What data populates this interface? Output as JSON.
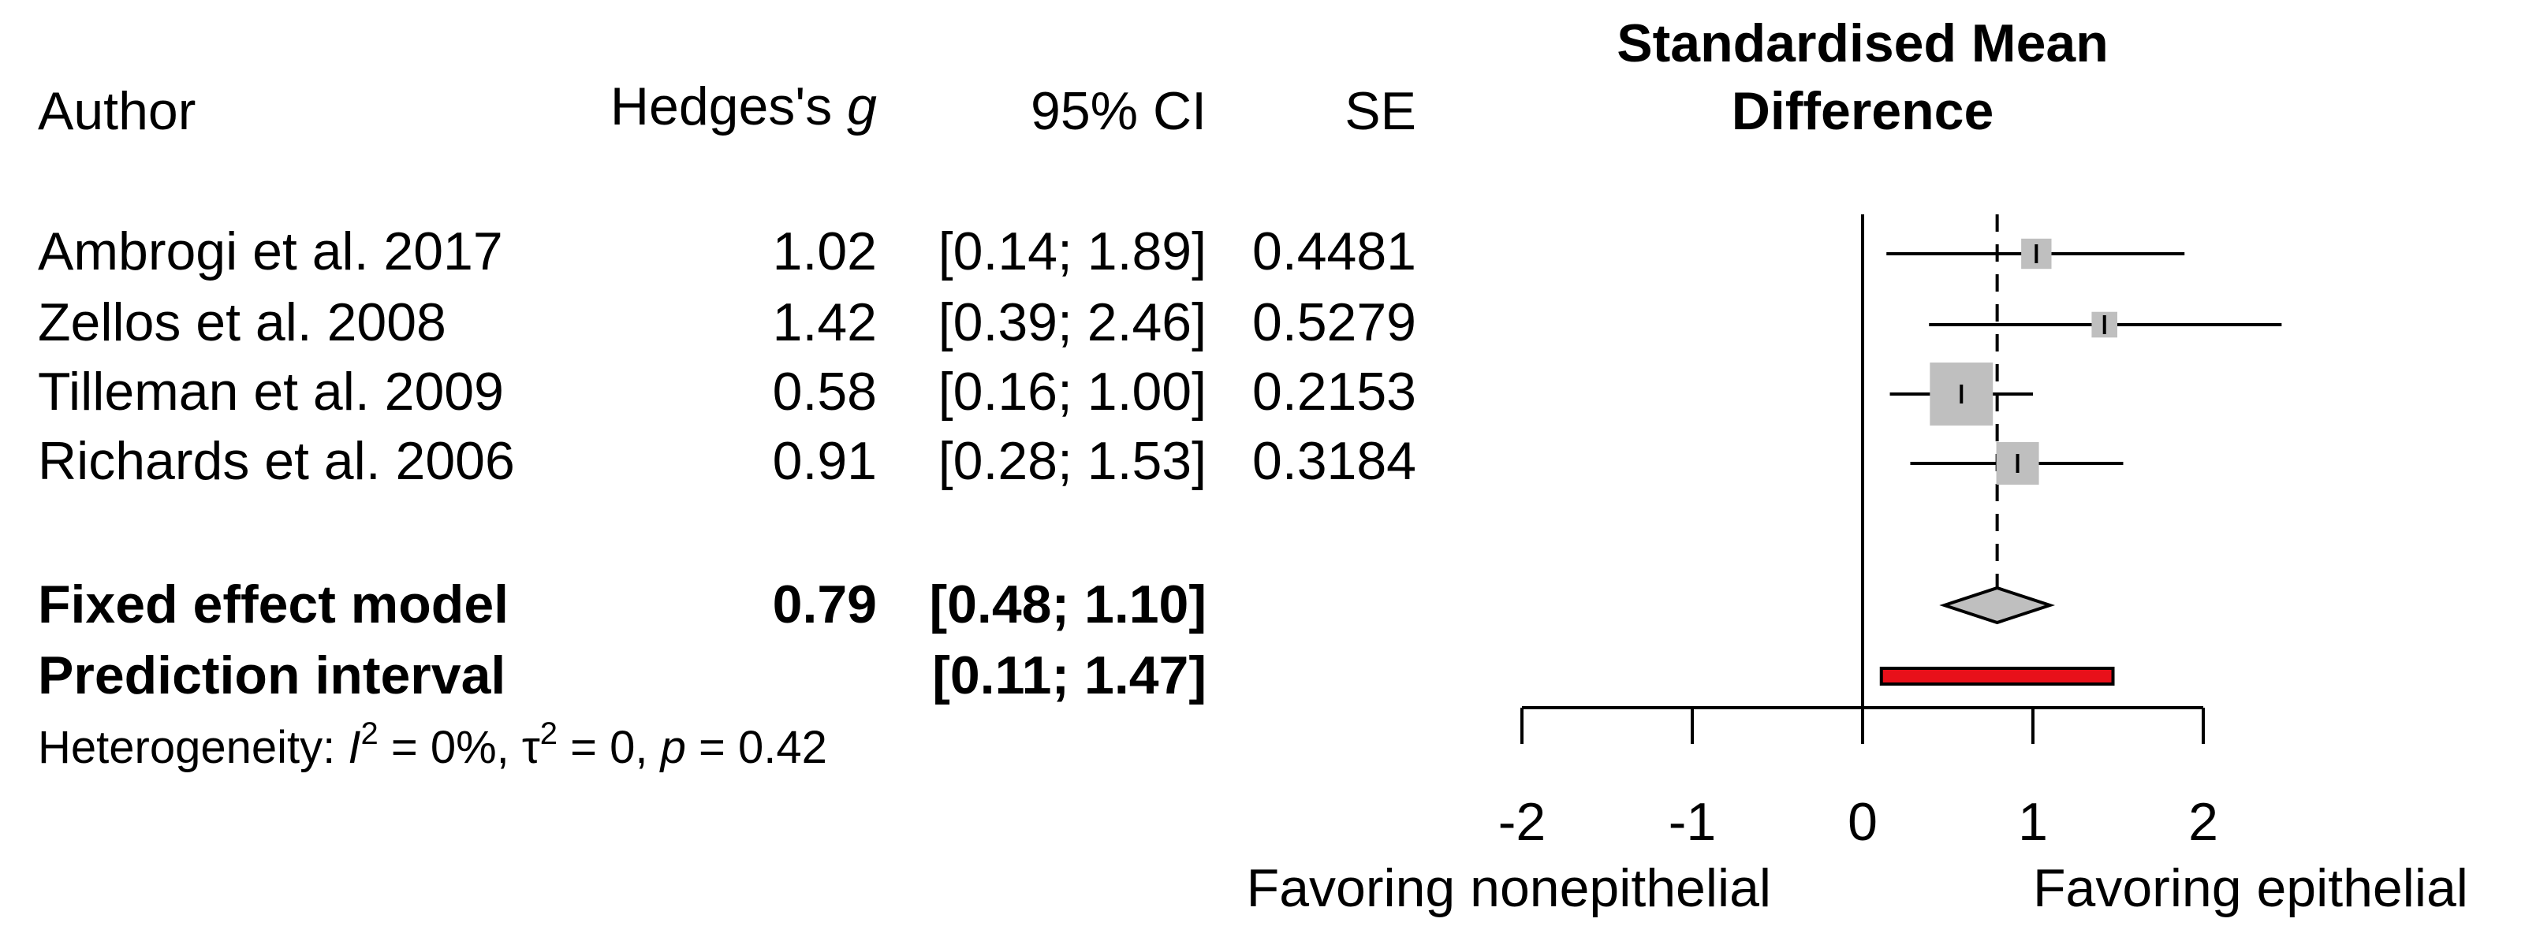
{
  "chart_data": {
    "type": "forest",
    "title_lines": [
      "Standardised Mean",
      "Difference"
    ],
    "columns": {
      "author": "Author",
      "effect_prefix": "Hedges's ",
      "effect_italic": "g",
      "ci": "95% CI",
      "se": "SE"
    },
    "studies": [
      {
        "author": "Ambrogi et al. 2017",
        "g": 1.02,
        "g_text": "1.02",
        "lower": 0.14,
        "upper": 1.89,
        "ci_text": "[0.14; 1.89]",
        "se": 0.4481,
        "se_text": "0.4481"
      },
      {
        "author": "Zellos et al. 2008",
        "g": 1.42,
        "g_text": "1.42",
        "lower": 0.39,
        "upper": 2.46,
        "ci_text": "[0.39; 2.46]",
        "se": 0.5279,
        "se_text": "0.5279"
      },
      {
        "author": "Tilleman et al. 2009",
        "g": 0.58,
        "g_text": "0.58",
        "lower": 0.16,
        "upper": 1.0,
        "ci_text": "[0.16; 1.00]",
        "se": 0.2153,
        "se_text": "0.2153"
      },
      {
        "author": "Richards et al. 2006",
        "g": 0.91,
        "g_text": "0.91",
        "lower": 0.28,
        "upper": 1.53,
        "ci_text": "[0.28; 1.53]",
        "se": 0.3184,
        "se_text": "0.3184"
      }
    ],
    "pooled": {
      "label": "Fixed effect model",
      "g": 0.79,
      "g_text": "0.79",
      "lower": 0.48,
      "upper": 1.1,
      "ci_text": "[0.48; 1.10]"
    },
    "prediction": {
      "label": "Prediction interval",
      "lower": 0.11,
      "upper": 1.47,
      "ci_text": "[0.11; 1.47]"
    },
    "heterogeneity": {
      "prefix": "Heterogeneity: ",
      "i2_symbol": "I",
      "i2_value": " = 0%, ",
      "tau_symbol": "τ",
      "tau_value": " = 0, ",
      "p_symbol": "p",
      "p_value": " = 0.42",
      "superscript": "2"
    },
    "xaxis": {
      "ticks": [
        -2,
        -1,
        0,
        1,
        2
      ],
      "tick_labels": [
        "-2",
        "-1",
        "0",
        "1",
        "2"
      ],
      "xlim": [
        -2,
        2
      ],
      "left_label": "Favoring nonepithelial",
      "right_label": "Favoring epithelial"
    },
    "colors": {
      "square": "#bfbfbf",
      "diamond": "#bfbfbf",
      "prediction": "#e8101a",
      "line": "#000000"
    }
  }
}
